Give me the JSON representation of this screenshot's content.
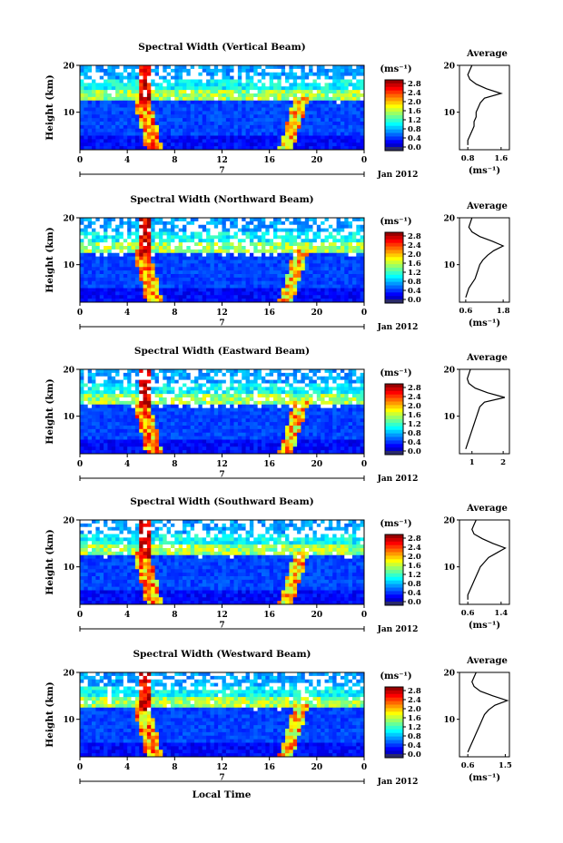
{
  "figure": {
    "xlabel": "Local Time",
    "month_label": "Jan 2012",
    "day_label": "7",
    "unit_label": "(ms⁻¹)",
    "average_title": "Average",
    "ylabel": "Height (km)"
  },
  "chart_data": [
    {
      "type": "heatmap",
      "title": "Spectral Width (Vertical Beam)",
      "xlabel": "Local Time",
      "ylabel": "Height (km)",
      "x_ticks": [
        "0",
        "4",
        "8",
        "12",
        "16",
        "20",
        "0"
      ],
      "y_ticks": [
        "20",
        "10"
      ],
      "xlim": [
        0,
        24
      ],
      "ylim": [
        2,
        20
      ],
      "colorbar": {
        "label": "(ms⁻¹)",
        "ticks": [
          "2.8",
          "2.4",
          "2.0",
          "1.6",
          "1.2",
          "0.8",
          "0.4",
          "0.0"
        ],
        "range": [
          0,
          2.8
        ]
      },
      "average_profile": {
        "title": "Average",
        "xlabel": "(ms⁻¹)",
        "x_ticks": [
          "0.8",
          "1.6"
        ],
        "xlim": [
          0.6,
          1.8
        ],
        "y_ticks": [
          "20",
          "10"
        ],
        "height": [
          3,
          4,
          5,
          6,
          7,
          8,
          9,
          10,
          11,
          12,
          13,
          14,
          15,
          16,
          17,
          18,
          19,
          20
        ],
        "value": [
          0.8,
          0.8,
          0.85,
          0.9,
          0.95,
          0.95,
          1.0,
          1.0,
          1.05,
          1.1,
          1.2,
          1.6,
          1.25,
          1.0,
          0.85,
          0.8,
          0.85,
          0.9
        ]
      }
    },
    {
      "type": "heatmap",
      "title": "Spectral Width (Northward Beam)",
      "xlabel": "Local Time",
      "ylabel": "Height (km)",
      "x_ticks": [
        "0",
        "4",
        "8",
        "12",
        "16",
        "20",
        "0"
      ],
      "y_ticks": [
        "20",
        "10"
      ],
      "xlim": [
        0,
        24
      ],
      "ylim": [
        2,
        20
      ],
      "colorbar": {
        "label": "(ms⁻¹)",
        "ticks": [
          "2.8",
          "2.4",
          "2.0",
          "1.6",
          "1.2",
          "0.8",
          "0.4",
          "0.0"
        ],
        "range": [
          0,
          2.8
        ]
      },
      "average_profile": {
        "title": "Average",
        "xlabel": "(ms⁻¹)",
        "x_ticks": [
          "0.6",
          "1.8"
        ],
        "xlim": [
          0.4,
          2.0
        ],
        "y_ticks": [
          "20",
          "10"
        ],
        "height": [
          3,
          4,
          5,
          6,
          7,
          8,
          9,
          10,
          11,
          12,
          13,
          14,
          15,
          16,
          17,
          18,
          19,
          20
        ],
        "value": [
          0.6,
          0.65,
          0.7,
          0.8,
          0.9,
          0.95,
          1.0,
          1.05,
          1.15,
          1.3,
          1.5,
          1.8,
          1.45,
          1.05,
          0.8,
          0.7,
          0.75,
          0.8
        ]
      }
    },
    {
      "type": "heatmap",
      "title": "Spectral Width (Eastward Beam)",
      "xlabel": "Local Time",
      "ylabel": "Height (km)",
      "x_ticks": [
        "0",
        "4",
        "8",
        "12",
        "16",
        "20",
        "0"
      ],
      "y_ticks": [
        "20",
        "10"
      ],
      "xlim": [
        0,
        24
      ],
      "ylim": [
        2,
        20
      ],
      "colorbar": {
        "label": "(ms⁻¹)",
        "ticks": [
          "2.8",
          "2.4",
          "2.0",
          "1.6",
          "1.2",
          "0.8",
          "0.4",
          "0.0"
        ],
        "range": [
          0,
          2.8
        ]
      },
      "average_profile": {
        "title": "Average",
        "xlabel": "",
        "x_ticks": [
          "1",
          "2"
        ],
        "xlim": [
          0.6,
          2.2
        ],
        "y_ticks": [
          "20",
          "10"
        ],
        "height": [
          3,
          4,
          5,
          6,
          7,
          8,
          9,
          10,
          11,
          12,
          13,
          14,
          15,
          16,
          17,
          18,
          19,
          20
        ],
        "value": [
          0.8,
          0.85,
          0.9,
          0.95,
          1.0,
          1.05,
          1.1,
          1.15,
          1.2,
          1.25,
          1.4,
          2.05,
          1.5,
          1.1,
          0.9,
          0.85,
          0.9,
          0.95
        ]
      }
    },
    {
      "type": "heatmap",
      "title": "Spectral Width (Southward Beam)",
      "xlabel": "Local Time",
      "ylabel": "Height (km)",
      "x_ticks": [
        "0",
        "4",
        "8",
        "12",
        "16",
        "20",
        "0"
      ],
      "y_ticks": [
        "20",
        "10"
      ],
      "xlim": [
        0,
        24
      ],
      "ylim": [
        2,
        20
      ],
      "colorbar": {
        "label": "(ms⁻¹)",
        "ticks": [
          "2.8",
          "2.4",
          "2.0",
          "1.6",
          "1.2",
          "0.8",
          "0.4",
          "0.0"
        ],
        "range": [
          0,
          2.8
        ]
      },
      "average_profile": {
        "title": "Average",
        "xlabel": "(ms⁻¹)",
        "x_ticks": [
          "0.6",
          "1.4"
        ],
        "xlim": [
          0.4,
          1.6
        ],
        "y_ticks": [
          "20",
          "10"
        ],
        "height": [
          3,
          4,
          5,
          6,
          7,
          8,
          9,
          10,
          11,
          12,
          13,
          14,
          15,
          16,
          17,
          18,
          19,
          20
        ],
        "value": [
          0.6,
          0.6,
          0.65,
          0.7,
          0.75,
          0.8,
          0.85,
          0.9,
          1.0,
          1.1,
          1.3,
          1.5,
          1.2,
          0.95,
          0.75,
          0.7,
          0.75,
          0.8
        ]
      }
    },
    {
      "type": "heatmap",
      "title": "Spectral Width (Westward Beam)",
      "xlabel": "Local Time",
      "ylabel": "Height (km)",
      "x_ticks": [
        "0",
        "4",
        "8",
        "12",
        "16",
        "20",
        "0"
      ],
      "y_ticks": [
        "20",
        "10"
      ],
      "xlim": [
        0,
        24
      ],
      "ylim": [
        2,
        20
      ],
      "colorbar": {
        "label": "(ms⁻¹)",
        "ticks": [
          "2.8",
          "2.4",
          "2.0",
          "1.6",
          "1.2",
          "0.8",
          "0.4",
          "0.0"
        ],
        "range": [
          0,
          2.8
        ]
      },
      "average_profile": {
        "title": "Average",
        "xlabel": "(ms⁻¹)",
        "x_ticks": [
          "0.6",
          "1.5"
        ],
        "xlim": [
          0.4,
          1.6
        ],
        "y_ticks": [
          "20",
          "10"
        ],
        "height": [
          3,
          4,
          5,
          6,
          7,
          8,
          9,
          10,
          11,
          12,
          13,
          14,
          15,
          16,
          17,
          18,
          19,
          20
        ],
        "value": [
          0.6,
          0.65,
          0.7,
          0.75,
          0.8,
          0.85,
          0.9,
          0.95,
          1.0,
          1.1,
          1.25,
          1.55,
          1.2,
          0.9,
          0.75,
          0.7,
          0.75,
          0.8
        ]
      }
    }
  ]
}
